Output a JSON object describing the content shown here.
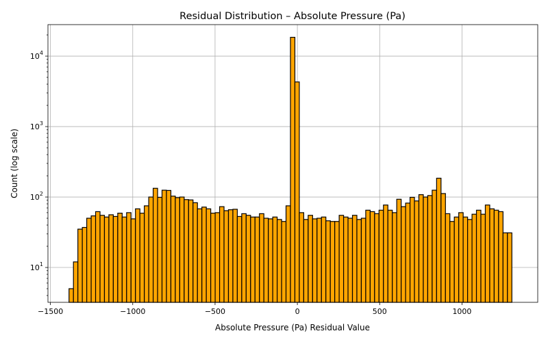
{
  "chart_data": {
    "type": "bar",
    "title": "Residual Distribution – Absolute Pressure (Pa)",
    "xlabel": "Absolute Pressure (Pa) Residual Value",
    "ylabel": "Count (log scale)",
    "yscale": "log",
    "xlim": [
      -1515,
      1460
    ],
    "ylim": [
      3.2,
      28000
    ],
    "grid": true,
    "x_ticks": [
      {
        "value": -1500,
        "label": "−1500"
      },
      {
        "value": -1000,
        "label": "−1000"
      },
      {
        "value": -500,
        "label": "−500"
      },
      {
        "value": 0,
        "label": "0"
      },
      {
        "value": 500,
        "label": "500"
      },
      {
        "value": 1000,
        "label": "1000"
      }
    ],
    "y_ticks": [
      {
        "value": 10,
        "base": "10",
        "exp": "1"
      },
      {
        "value": 100,
        "base": "10",
        "exp": "2"
      },
      {
        "value": 1000,
        "base": "10",
        "exp": "3"
      },
      {
        "value": 10000,
        "base": "10",
        "exp": "4"
      }
    ],
    "bin_start": -1387,
    "bin_width": 26.9,
    "values": [
      5,
      12,
      35,
      37,
      50,
      54,
      62,
      55,
      52,
      56,
      53,
      59,
      52,
      60,
      49,
      68,
      59,
      75,
      100,
      133,
      99,
      125,
      124,
      103,
      98,
      100,
      92,
      91,
      83,
      68,
      72,
      68,
      59,
      60,
      73,
      64,
      66,
      67,
      53,
      58,
      55,
      52,
      52,
      58,
      50,
      49,
      52,
      48,
      45,
      75,
      18500,
      4300,
      60,
      48,
      55,
      49,
      50,
      52,
      46,
      45,
      45,
      55,
      52,
      50,
      55,
      48,
      50,
      65,
      62,
      58,
      65,
      77,
      65,
      60,
      93,
      73,
      82,
      99,
      88,
      108,
      100,
      105,
      125,
      185,
      112,
      58,
      45,
      52,
      60,
      52,
      48,
      57,
      65,
      57,
      77,
      68,
      65,
      62,
      31,
      31
    ],
    "bar_color": "#FFA500",
    "edge_color": "#000000"
  }
}
